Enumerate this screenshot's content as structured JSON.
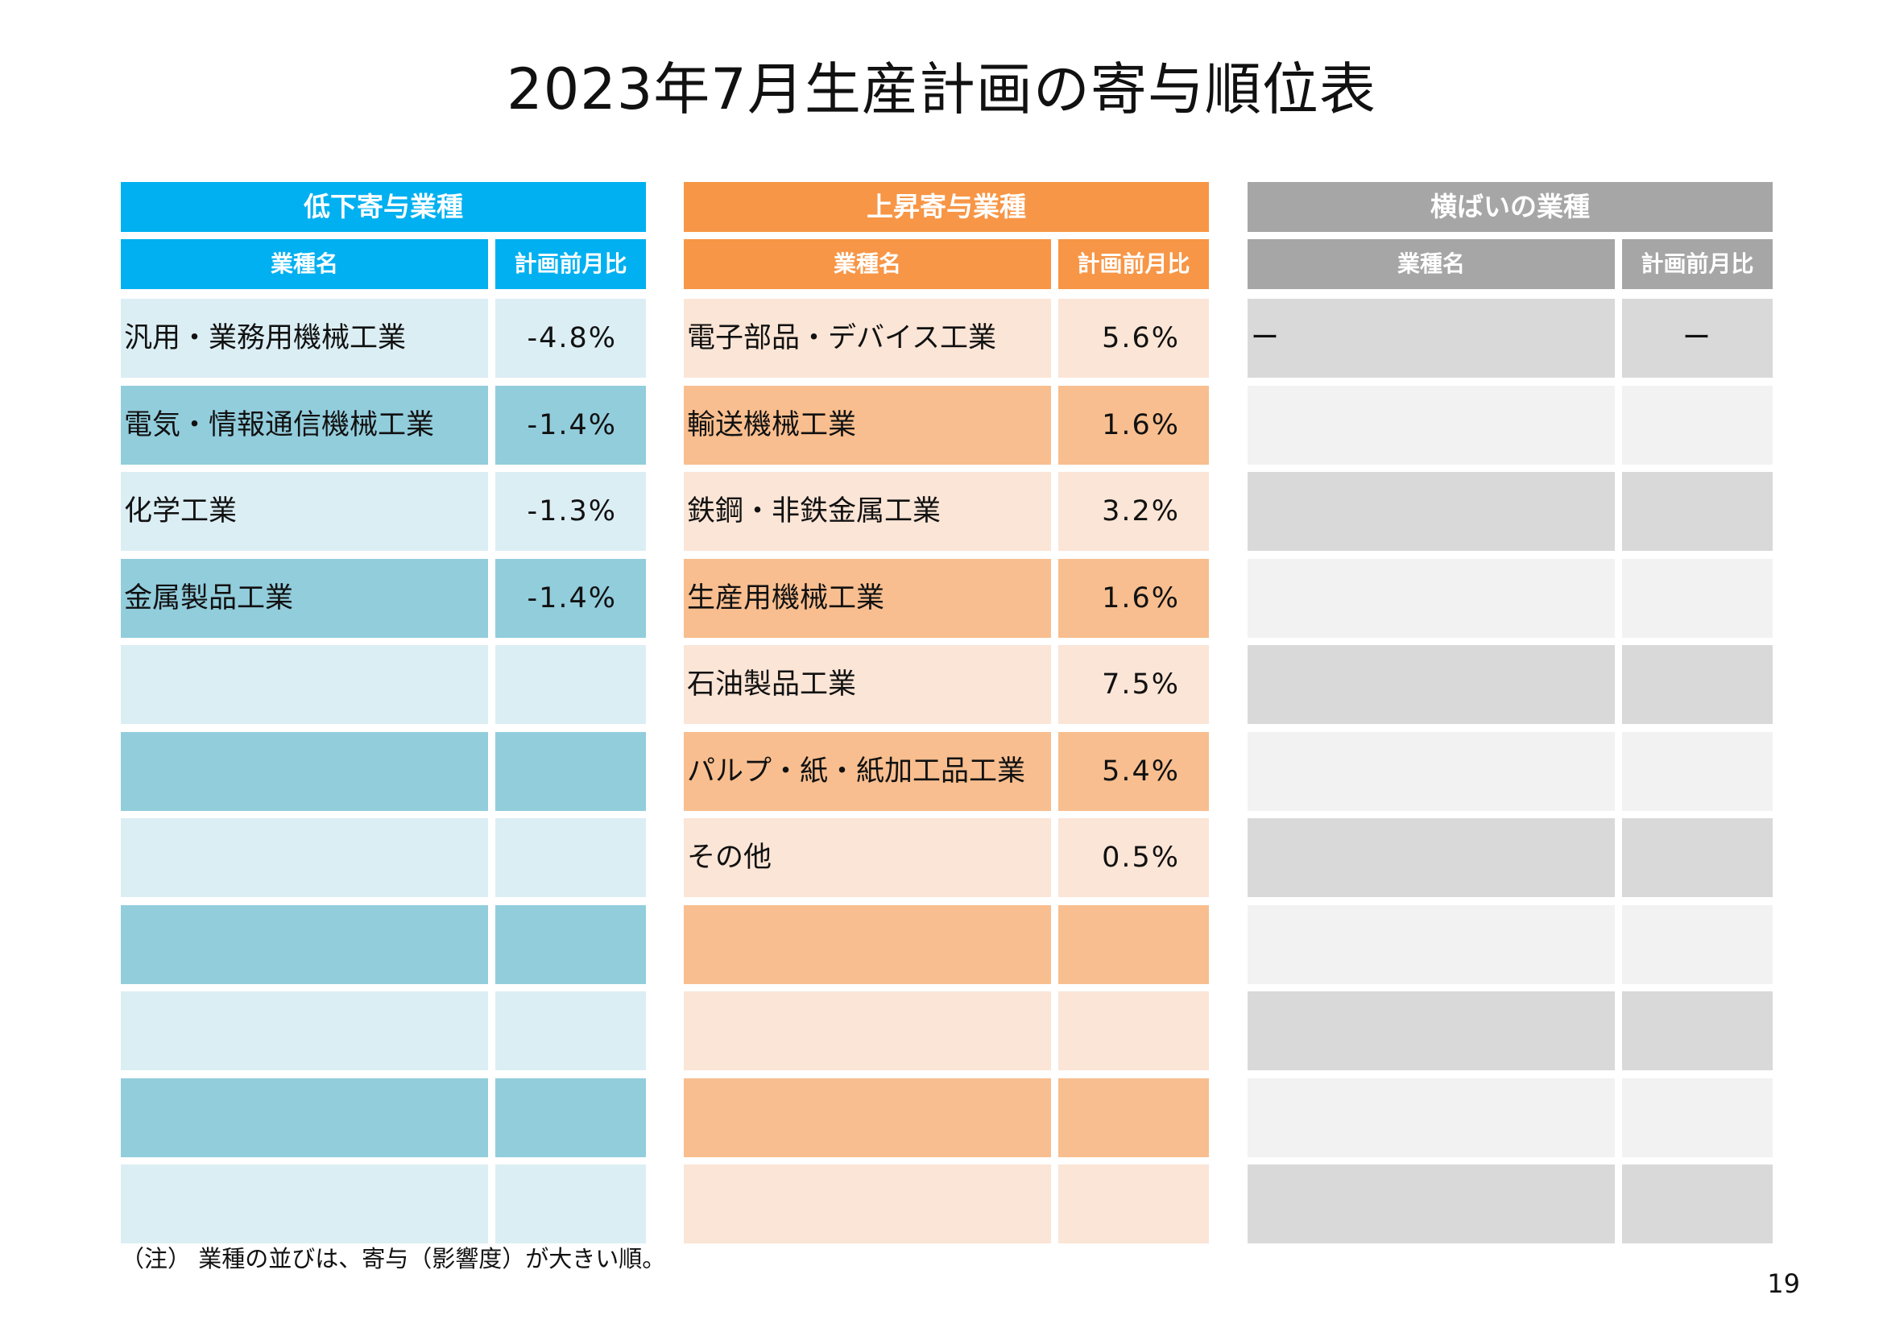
{
  "title": "2023年7月生産計画の寄与順位表",
  "colors": {
    "decrease_header": "#00b0f0",
    "decrease_row_light": "#dbeef4",
    "decrease_row_dark": "#92cddc",
    "increase_header": "#f79646",
    "increase_row_light": "#fbe5d6",
    "increase_row_dark": "#f8be8f",
    "flat_header": "#a6a6a6",
    "flat_row_dark": "#d9d9d9",
    "flat_row_light": "#f2f2f2"
  },
  "panels": [
    {
      "key": "decrease",
      "title": "低下寄与業種",
      "col_name": "業種名",
      "col_value": "計画前月比",
      "rows": [
        {
          "name": "汎用・業務用機械工業",
          "value": "-4.8%"
        },
        {
          "name": "電気・情報通信機械工業",
          "value": "-1.4%"
        },
        {
          "name": "化学工業",
          "value": "-1.3%"
        },
        {
          "name": "金属製品工業",
          "value": "-1.4%"
        },
        {
          "name": "",
          "value": ""
        },
        {
          "name": "",
          "value": ""
        },
        {
          "name": "",
          "value": ""
        },
        {
          "name": "",
          "value": ""
        },
        {
          "name": "",
          "value": ""
        },
        {
          "name": "",
          "value": ""
        },
        {
          "name": "",
          "value": ""
        }
      ]
    },
    {
      "key": "increase",
      "title": "上昇寄与業種",
      "col_name": "業種名",
      "col_value": "計画前月比",
      "rows": [
        {
          "name": "電子部品・デバイス工業",
          "value": "5.6%"
        },
        {
          "name": "輸送機械工業",
          "value": "1.6%"
        },
        {
          "name": "鉄鋼・非鉄金属工業",
          "value": "3.2%"
        },
        {
          "name": "生産用機械工業",
          "value": "1.6%"
        },
        {
          "name": "石油製品工業",
          "value": "7.5%"
        },
        {
          "name": "パルプ・紙・紙加工品工業",
          "value": "5.4%"
        },
        {
          "name": "その他",
          "value": "0.5%"
        },
        {
          "name": "",
          "value": ""
        },
        {
          "name": "",
          "value": ""
        },
        {
          "name": "",
          "value": ""
        },
        {
          "name": "",
          "value": ""
        }
      ]
    },
    {
      "key": "flat",
      "title": "横ばいの業種",
      "col_name": "業種名",
      "col_value": "計画前月比",
      "rows": [
        {
          "name": "ー",
          "value": "ー"
        },
        {
          "name": "",
          "value": ""
        },
        {
          "name": "",
          "value": ""
        },
        {
          "name": "",
          "value": ""
        },
        {
          "name": "",
          "value": ""
        },
        {
          "name": "",
          "value": ""
        },
        {
          "name": "",
          "value": ""
        },
        {
          "name": "",
          "value": ""
        },
        {
          "name": "",
          "value": ""
        },
        {
          "name": "",
          "value": ""
        },
        {
          "name": "",
          "value": ""
        }
      ]
    }
  ],
  "note": "（注） 業種の並びは、寄与（影響度）が大きい順。",
  "page_number": "19"
}
